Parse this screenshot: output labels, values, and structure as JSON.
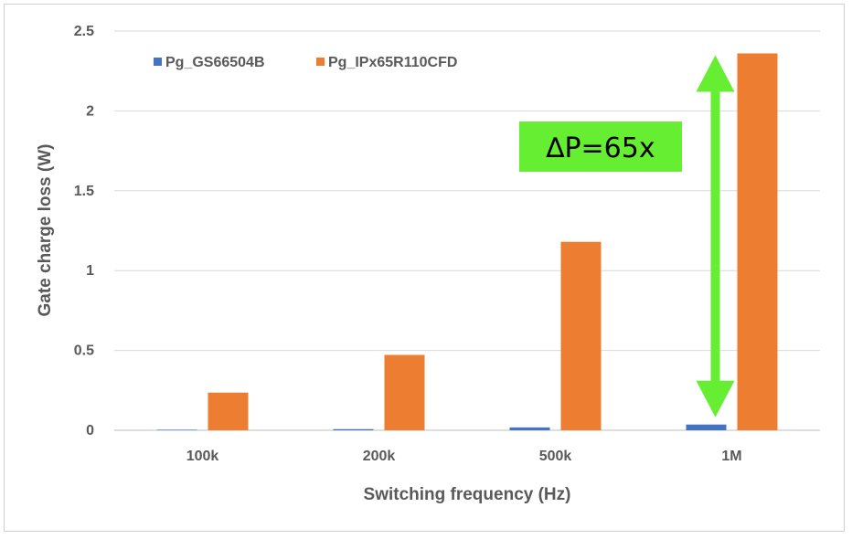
{
  "chart_data": {
    "type": "bar",
    "title": "",
    "xlabel": "Switching frequency (Hz)",
    "ylabel": "Gate charge loss (W)",
    "categories": [
      "100k",
      "200k",
      "500k",
      "1M"
    ],
    "ylim": [
      0,
      2.5
    ],
    "yticks": [
      0,
      0.5,
      1,
      1.5,
      2,
      2.5
    ],
    "ytick_labels": [
      "0",
      "0.5",
      "1",
      "1.5",
      "2",
      "2.5"
    ],
    "grid": true,
    "legend_position": "top-left",
    "series": [
      {
        "name": "Pg_GS66504B",
        "color": "#4472c4",
        "values": [
          0.0036,
          0.0072,
          0.018,
          0.036
        ]
      },
      {
        "name": "Pg_IPx65R110CFD",
        "color": "#ed7d31",
        "values": [
          0.236,
          0.472,
          1.18,
          2.36
        ]
      }
    ],
    "annotation": {
      "text": "∆P=65x",
      "box_color": "#66ee33",
      "arrow_color": "#66ee33",
      "arrow_category": "1M",
      "arrow_from": 0.036,
      "arrow_to": 2.36
    }
  }
}
